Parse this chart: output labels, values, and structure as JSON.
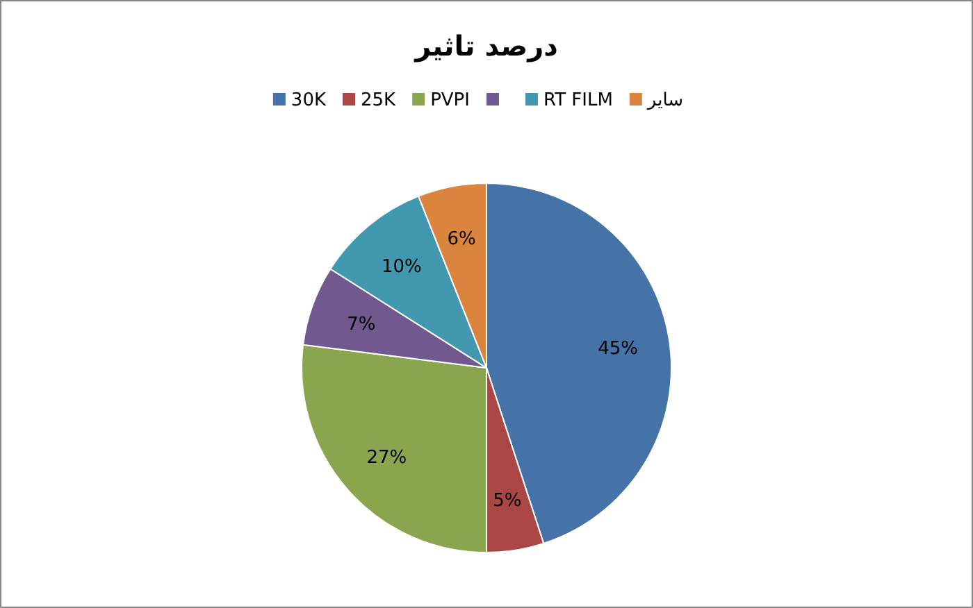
{
  "chart_data": {
    "type": "pie",
    "title": "درصد تاثیر",
    "categories": [
      "30K",
      "25K",
      "PVPI",
      null,
      "RT FILM",
      "سایر"
    ],
    "values": [
      45,
      5,
      27,
      7,
      10,
      6
    ],
    "value_labels": [
      "45%",
      "5%",
      "27%",
      "7%",
      "10%",
      "6%"
    ],
    "colors": [
      "#4572a7",
      "#aa4643",
      "#89a54e",
      "#71588f",
      "#4198af",
      "#db843d"
    ],
    "legend": "top"
  }
}
